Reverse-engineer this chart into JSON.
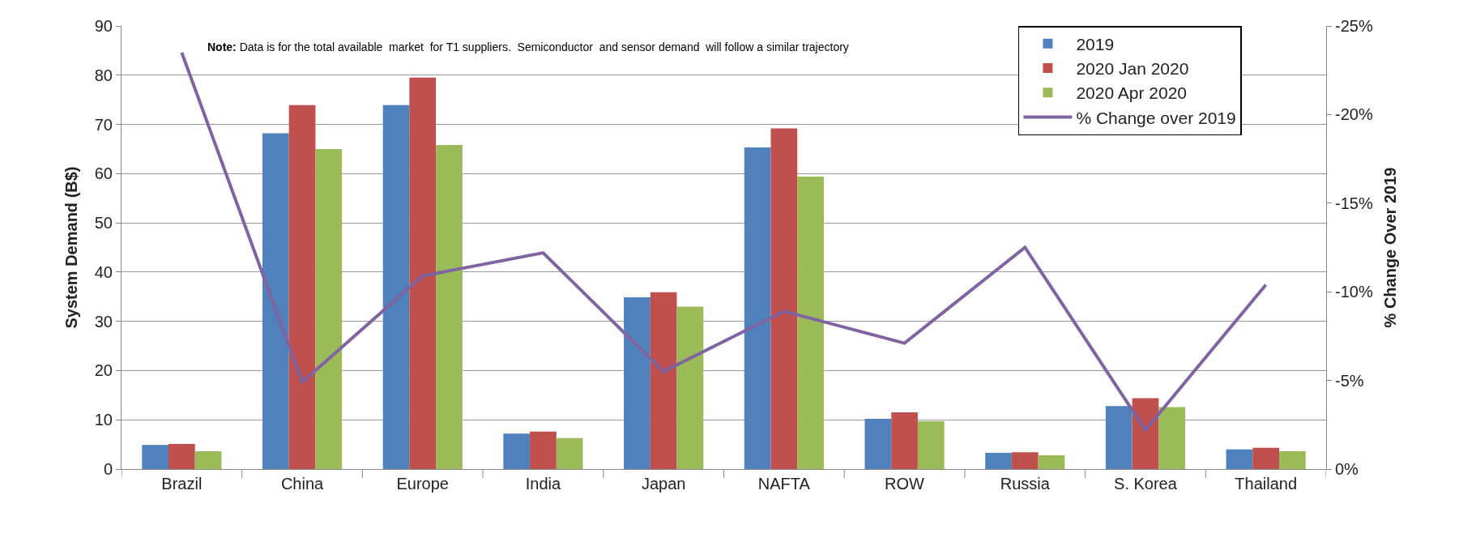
{
  "chart_data": {
    "type": "bar",
    "ylabel": "System Demand (B$)",
    "y2label": "% Change Over 2019",
    "categories": [
      "Brazil",
      "China",
      "Europe",
      "India",
      "Japan",
      "NAFTA",
      "ROW",
      "Russia",
      "S. Korea",
      "Thailand"
    ],
    "series": [
      {
        "name": "2019",
        "color": "#4f81bd",
        "values": [
          4.9,
          68.2,
          73.9,
          7.2,
          34.9,
          65.3,
          10.2,
          3.3,
          12.8,
          4.0
        ]
      },
      {
        "name": "2020 Jan 2020",
        "color": "#c0504d",
        "values": [
          5.1,
          73.9,
          79.5,
          7.6,
          35.9,
          69.2,
          11.5,
          3.4,
          14.4,
          4.3
        ]
      },
      {
        "name": "2020 Apr 2020",
        "color": "#9bbb59",
        "values": [
          3.6,
          65.0,
          65.8,
          6.3,
          33.0,
          59.4,
          9.7,
          2.8,
          12.6,
          3.6
        ]
      },
      {
        "name": "% Change over 2019",
        "type": "line",
        "axis": "y2",
        "color": "#8064a2",
        "marker": "none",
        "values": [
          -23.5,
          -4.9,
          -10.9,
          -12.2,
          -5.5,
          -8.9,
          -7.1,
          -12.5,
          -2.2,
          -10.4
        ]
      }
    ],
    "ylim": [
      0,
      90
    ],
    "yticks": [
      0,
      10,
      20,
      30,
      40,
      50,
      60,
      70,
      80,
      90
    ],
    "y2lim": [
      0,
      -25
    ],
    "y2ticks": [
      {
        "value": 0,
        "label": "0%"
      },
      {
        "value": -5,
        "label": "-5%"
      },
      {
        "value": -10,
        "label": "-10%"
      },
      {
        "value": -15,
        "label": "-15%"
      },
      {
        "value": -20,
        "label": "-20%"
      },
      {
        "value": -25,
        "label": "-25%"
      }
    ],
    "grid": "y",
    "legend": "top right",
    "annotations": [
      "Note: Data is for the total available  market  for T1 suppliers.  Semiconductor  and sensor demand  will follow a similar trajectory"
    ]
  }
}
